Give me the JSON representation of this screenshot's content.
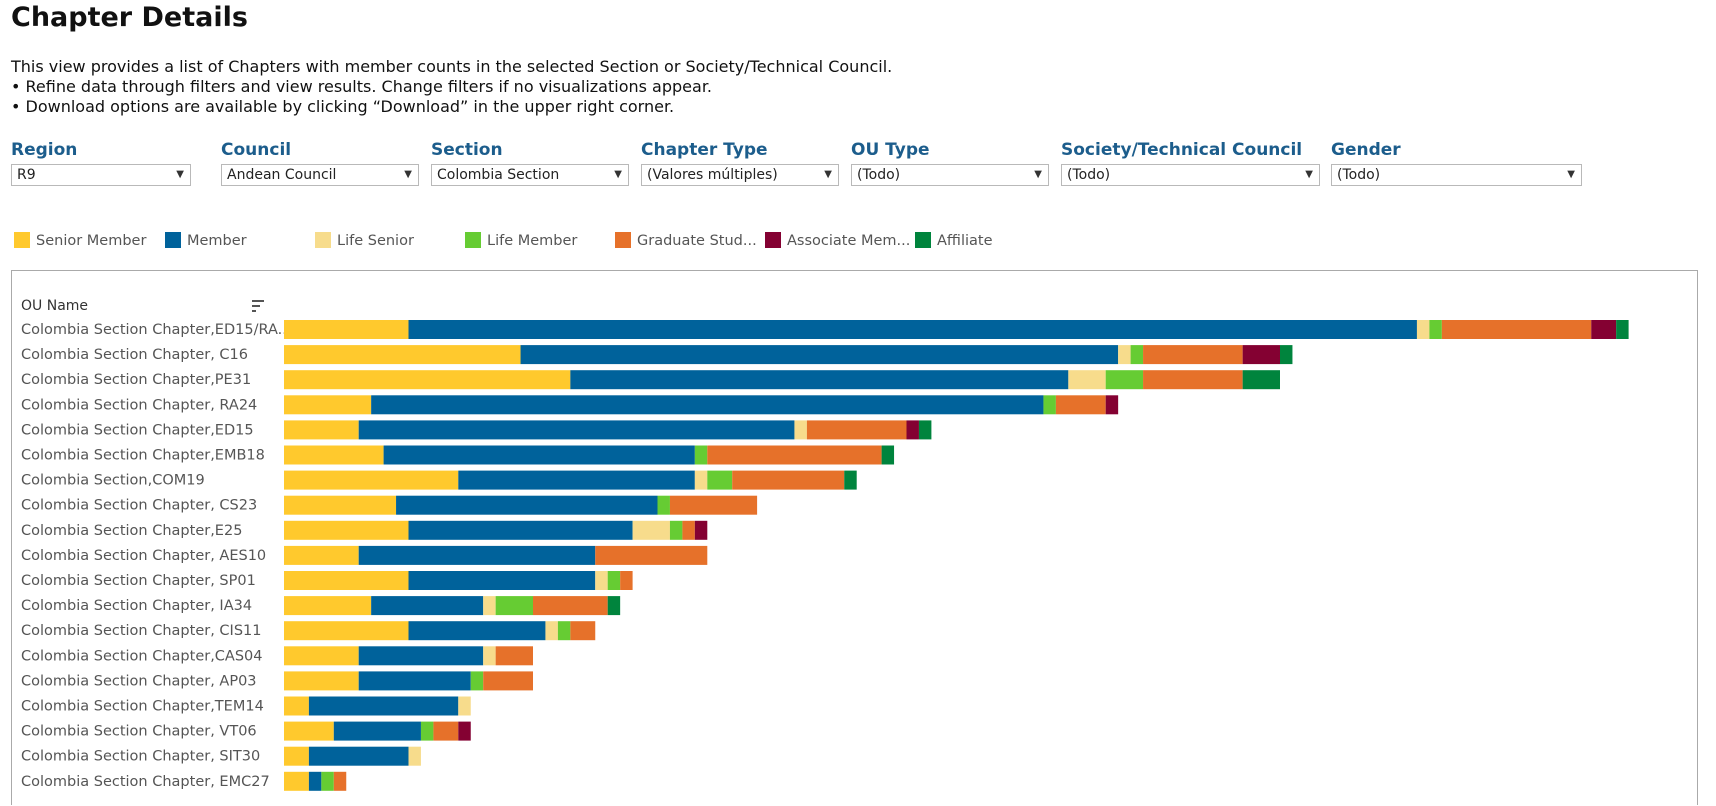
{
  "page": {
    "title": "Chapter Details",
    "intro_lines": [
      "This view provides a list of Chapters with member counts in the selected Section or Society/Technical Council.",
      "• Refine data through filters and view results. Change filters if no visualizations appear.",
      "• Download options are available by clicking “Download” in the upper right corner."
    ]
  },
  "filters": [
    {
      "label": "Region",
      "value": "R9"
    },
    {
      "label": "Council",
      "value": "Andean Council"
    },
    {
      "label": "Section",
      "value": "Colombia Section"
    },
    {
      "label": "Chapter Type",
      "value": "(Valores múltiples)"
    },
    {
      "label": "OU Type",
      "value": "(Todo)"
    },
    {
      "label": "Society/Technical Council",
      "value": "(Todo)"
    },
    {
      "label": "Gender",
      "value": "(Todo)"
    }
  ],
  "icons": {
    "dropdown": "chevron-down-icon",
    "sort": "sort-icon"
  },
  "chart_data": {
    "type": "bar",
    "orientation": "horizontal",
    "stacked": true,
    "ylabel": "OU Name",
    "legend_position": "top",
    "categories": [
      "Colombia Section Chapter,ED15/RA..",
      "Colombia Section Chapter, C16",
      "Colombia Section Chapter,PE31",
      "Colombia Section Chapter, RA24",
      "Colombia Section Chapter,ED15",
      "Colombia Section Chapter,EMB18",
      "Colombia Section,COM19",
      "Colombia Section Chapter, CS23",
      "Colombia Section Chapter,E25",
      "Colombia Section Chapter, AES10",
      "Colombia Section Chapter, SP01",
      "Colombia Section Chapter, IA34",
      "Colombia Section Chapter, CIS11",
      "Colombia Section Chapter,CAS04",
      "Colombia Section Chapter, AP03",
      "Colombia Section Chapter,TEM14",
      "Colombia Section Chapter, VT06",
      "Colombia Section Chapter, SIT30",
      "Colombia Section Chapter, EMC27"
    ],
    "series": [
      {
        "name": "Senior Member",
        "color": "#ffc92d",
        "values": [
          10,
          19,
          23,
          7,
          6,
          8,
          14,
          9,
          10,
          6,
          10,
          7,
          10,
          6,
          6,
          2,
          4,
          2,
          2
        ]
      },
      {
        "name": "Member",
        "color": "#00629b",
        "values": [
          81,
          48,
          40,
          54,
          35,
          25,
          19,
          21,
          18,
          19,
          15,
          9,
          11,
          10,
          9,
          12,
          7,
          8,
          1
        ]
      },
      {
        "name": "Life Senior",
        "color": "#f7dc8c",
        "values": [
          1,
          1,
          3,
          0,
          1,
          0,
          1,
          0,
          3,
          0,
          1,
          1,
          1,
          1,
          0,
          1,
          0,
          1,
          0
        ]
      },
      {
        "name": "Life Member",
        "color": "#66cc33",
        "values": [
          1,
          1,
          3,
          1,
          0,
          1,
          2,
          1,
          1,
          0,
          1,
          3,
          1,
          0,
          1,
          0,
          1,
          0,
          1
        ]
      },
      {
        "name": "Graduate Stud...",
        "color": "#e6712a",
        "values": [
          12,
          8,
          8,
          4,
          8,
          14,
          9,
          7,
          1,
          9,
          1,
          6,
          2,
          3,
          4,
          0,
          2,
          0,
          1
        ]
      },
      {
        "name": "Associate Mem...",
        "color": "#840132",
        "values": [
          2,
          3,
          0,
          1,
          1,
          0,
          0,
          0,
          1,
          0,
          0,
          0,
          0,
          0,
          0,
          0,
          1,
          0,
          0
        ]
      },
      {
        "name": "Affiliate",
        "color": "#00843d",
        "values": [
          1,
          1,
          3,
          0,
          1,
          1,
          1,
          0,
          0,
          0,
          0,
          1,
          0,
          0,
          0,
          0,
          0,
          0,
          0
        ]
      }
    ]
  }
}
